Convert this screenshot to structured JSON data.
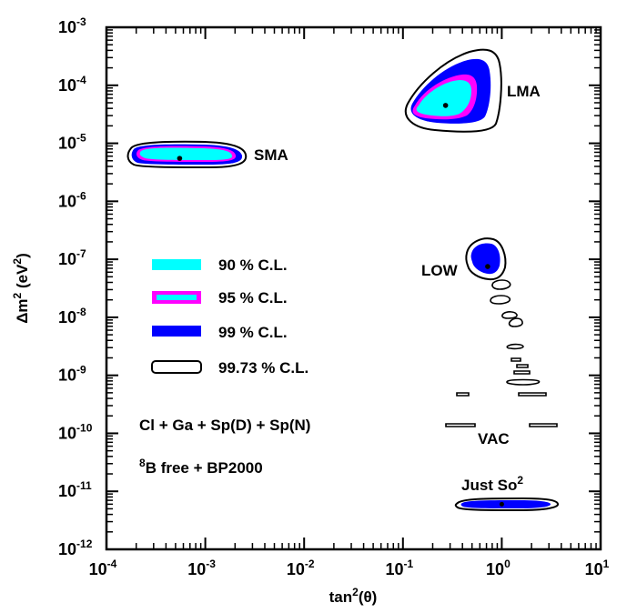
{
  "chart_data": {
    "type": "contour",
    "x_scale": "log",
    "y_scale": "log",
    "xlabel_base": "tan",
    "xlabel_sup": "2",
    "xlabel_arg": "(θ)",
    "ylabel_base": "Δm",
    "ylabel_sup": "2",
    "ylabel_unit_open": " (eV",
    "ylabel_unit_sup": "2",
    "ylabel_unit_close": ")",
    "xlim": [
      0.0001,
      10
    ],
    "ylim": [
      1e-12,
      0.001
    ],
    "x_ticks": [
      {
        "base": "10",
        "exp": "-4",
        "value": 0.0001
      },
      {
        "base": "10",
        "exp": "-3",
        "value": 0.001
      },
      {
        "base": "10",
        "exp": "-2",
        "value": 0.01
      },
      {
        "base": "10",
        "exp": "-1",
        "value": 0.1
      },
      {
        "base": "10",
        "exp": "0",
        "value": 1
      },
      {
        "base": "10",
        "exp": "1",
        "value": 10
      }
    ],
    "y_ticks": [
      {
        "base": "10",
        "exp": "-3",
        "value": 0.001
      },
      {
        "base": "10",
        "exp": "-4",
        "value": 0.0001
      },
      {
        "base": "10",
        "exp": "-5",
        "value": 1e-05
      },
      {
        "base": "10",
        "exp": "-6",
        "value": 1e-06
      },
      {
        "base": "10",
        "exp": "-7",
        "value": 1e-07
      },
      {
        "base": "10",
        "exp": "-8",
        "value": 1e-08
      },
      {
        "base": "10",
        "exp": "-9",
        "value": 1e-09
      },
      {
        "base": "10",
        "exp": "-10",
        "value": 1e-10
      },
      {
        "base": "10",
        "exp": "-11",
        "value": 1e-11
      },
      {
        "base": "10",
        "exp": "-12",
        "value": 1e-12
      }
    ],
    "legend": [
      {
        "label": "90 % C.L.",
        "color": "#00ffff"
      },
      {
        "label": "95 % C.L.",
        "color": "#ff00ff"
      },
      {
        "label": "99 % C.L.",
        "color": "#0000ff"
      },
      {
        "label": "99.73 % C.L.",
        "color": "#ffffff"
      }
    ],
    "regions": [
      {
        "name": "SMA",
        "best_fit": {
          "x": 0.00055,
          "y": 5.5e-06
        }
      },
      {
        "name": "LMA",
        "best_fit": {
          "x": 0.27,
          "y": 4.5e-05
        }
      },
      {
        "name": "LOW",
        "best_fit": {
          "x": 0.72,
          "y": 7.5e-08
        }
      },
      {
        "name": "VAC"
      },
      {
        "name": "Just So",
        "name_sup": "2",
        "best_fit": {
          "x": 1.0,
          "y": 6e-12
        }
      }
    ],
    "notes": [
      {
        "text": "Cl + Ga + Sp(D) + Sp(N)"
      },
      {
        "sup": "8",
        "text": "B free + BP2000"
      }
    ]
  },
  "colors": {
    "cl90": "#00ffff",
    "cl95": "#ff00ff",
    "cl99": "#0000ff",
    "cl9973": "#ffffff",
    "axis": "#000000"
  }
}
